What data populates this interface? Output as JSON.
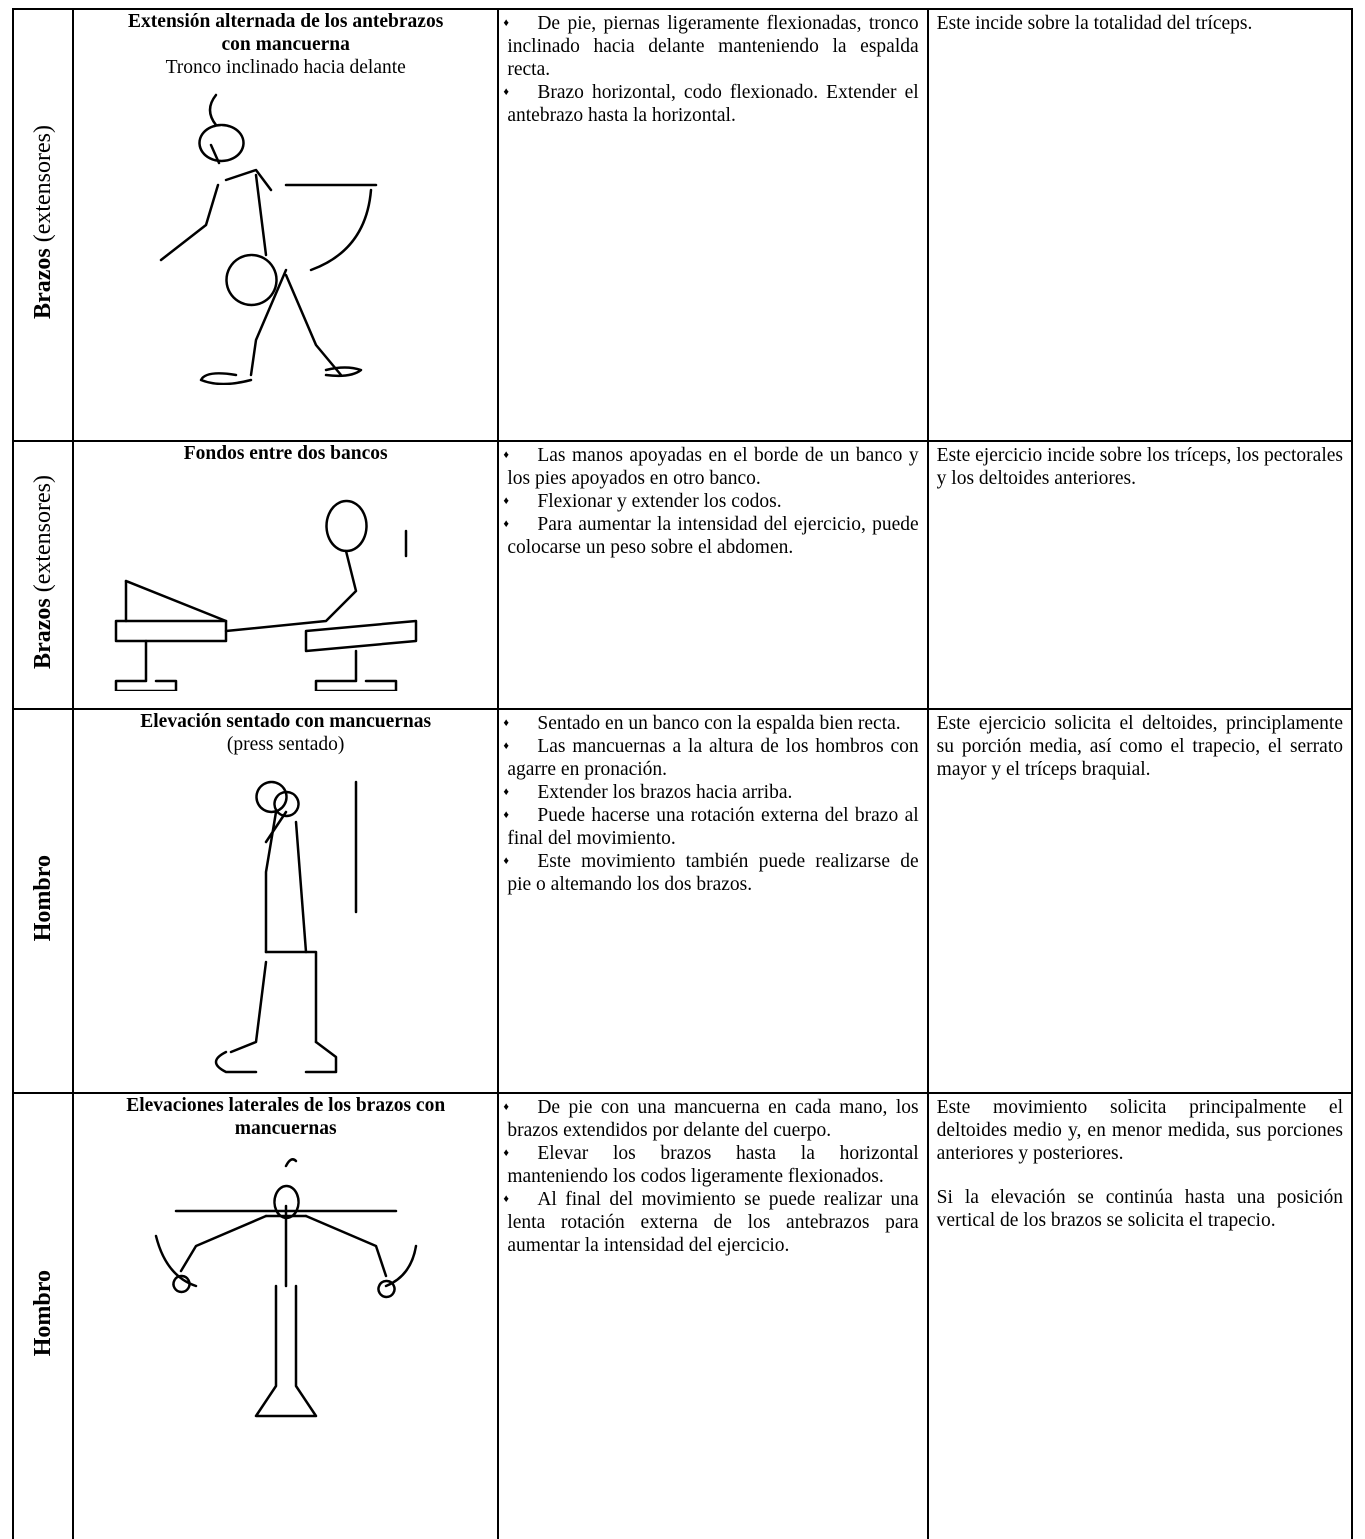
{
  "table": {
    "rows": [
      {
        "category": {
          "bold": "Brazos",
          "normal": "(extensores)"
        },
        "title": "Extensión alternada de los antebrazos con mancuerna",
        "subtitle": "Tronco inclinado hacia delante",
        "steps": [
          "De pie, piernas ligeramente flexionadas, tronco inclinado hacia delante manteniendo la espalda recta.",
          "Brazo horizontal, codo flexionado. Extender el antebrazo hasta la horizontal."
        ],
        "effects": [
          "Este incide sobre la totalidad del tríceps."
        ]
      },
      {
        "category": {
          "bold": "Brazos",
          "normal": "(extensores)"
        },
        "title": "Fondos entre dos bancos",
        "steps": [
          "Las manos apoyadas en el borde de un banco y los pies apoyados en otro banco.",
          "Flexionar y extender los codos.",
          "Para aumentar la intensidad del ejercicio, puede colocarse un peso sobre el abdomen."
        ],
        "effects": [
          "Este ejercicio incide sobre los tríceps, los pectorales y los deltoides anteriores."
        ]
      },
      {
        "category": {
          "bold": "Hombro"
        },
        "title": "Elevación sentado con mancuernas",
        "subtitle": "(press sentado)",
        "steps": [
          "Sentado en un banco con la espalda bien recta.",
          "Las mancuernas a la altura de los hombros con agarre en pronación.",
          "Extender los brazos hacia arriba.",
          "Puede hacerse una rotación externa del brazo al final del movimiento.",
          "Este movimiento también puede realizarse de pie o altemando los dos brazos."
        ],
        "effects": [
          "Este ejercicio solicita el deltoides, principlamente su porción media, así como el trapecio, el serrato mayor y el tríceps braquial."
        ]
      },
      {
        "category": {
          "bold": "Hombro"
        },
        "title": "Elevaciones laterales de los brazos con mancuernas",
        "steps": [
          "De pie con una mancuerna en cada mano, los brazos extendidos por delante del cuerpo.",
          "Elevar los brazos hasta la horizontal manteniendo los codos ligeramente flexionados.",
          "Al final del movimiento se puede realizar una lenta rotación externa de los antebrazos para aumentar la intensidad del ejercicio."
        ],
        "effects": [
          "Este movimiento solicita principalmente el deltoides medio y, en menor medida, sus porciones anteriores y posteriores.",
          "Si la elevación se continúa hasta una posición vertical de los brazos se solicita el trapecio."
        ]
      }
    ]
  }
}
